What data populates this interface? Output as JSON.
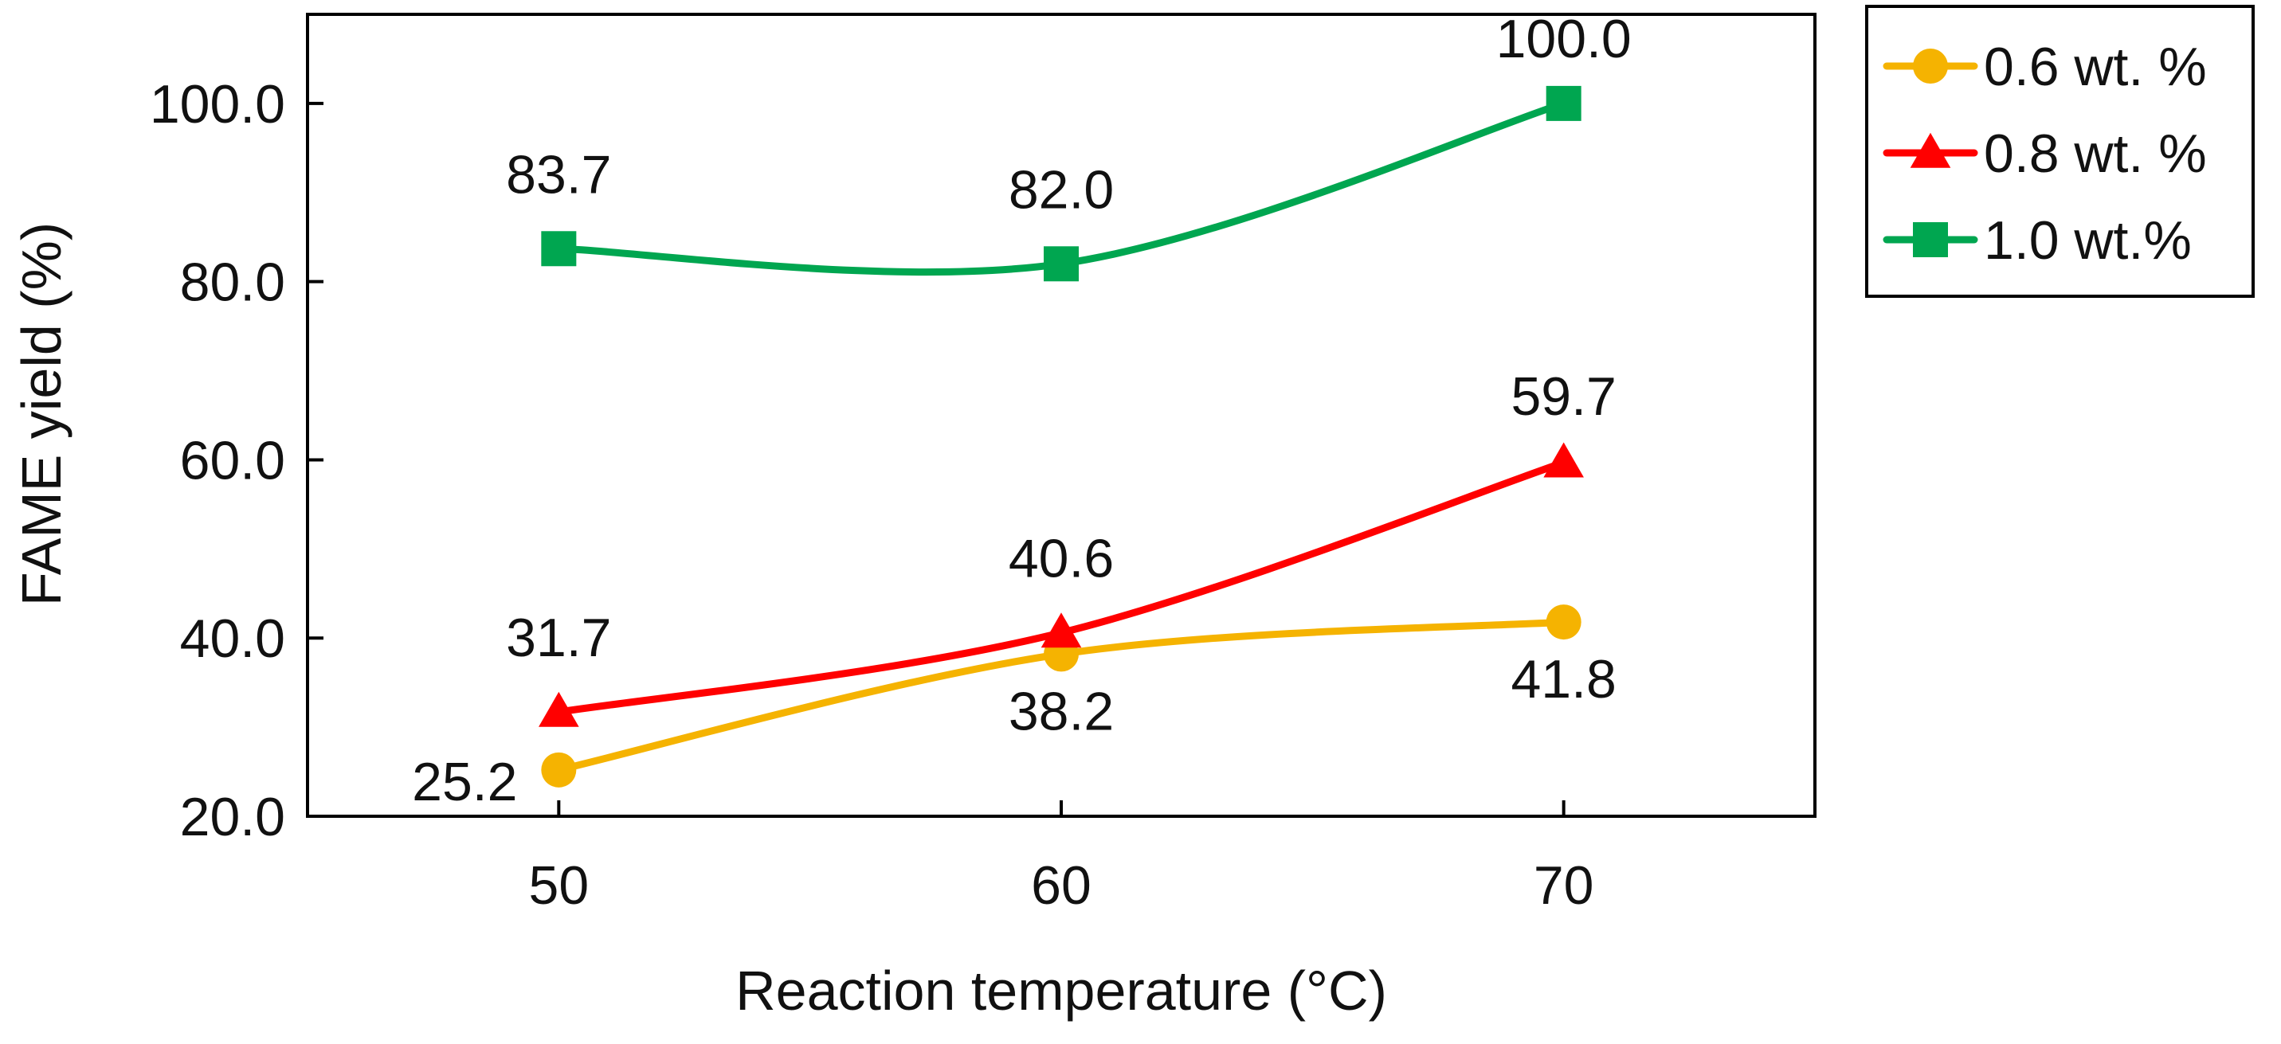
{
  "chart_data": {
    "type": "line",
    "title": "",
    "xlabel": "Reaction temperature (°C)",
    "ylabel": "FAME yield (%)",
    "x": [
      50,
      60,
      70
    ],
    "x_tick_labels": [
      "50",
      "60",
      "70"
    ],
    "xlim": [
      45,
      75
    ],
    "ylim": [
      20,
      110
    ],
    "y_ticks": [
      20,
      40,
      60,
      80,
      100
    ],
    "y_tick_labels": [
      "20.0",
      "40.0",
      "60.0",
      "80.0",
      "100.0"
    ],
    "grid": false,
    "legend_position": "outside-top-right",
    "smoothed": true,
    "series": [
      {
        "name": "0.6 wt. %",
        "marker": "circle",
        "color": "#f5b301",
        "values": [
          25.2,
          38.2,
          41.8
        ],
        "labels": [
          "25.2",
          "38.2",
          "41.8"
        ]
      },
      {
        "name": "0.8 wt. %",
        "marker": "triangle",
        "color": "#ff0000",
        "values": [
          31.7,
          40.6,
          59.7
        ],
        "labels": [
          "31.7",
          "40.6",
          "59.7"
        ]
      },
      {
        "name": "1.0 wt.%",
        "marker": "square",
        "color": "#00a650",
        "values": [
          83.7,
          82.0,
          100.0
        ],
        "labels": [
          "83.7",
          "82.0",
          "100.0"
        ]
      }
    ]
  }
}
